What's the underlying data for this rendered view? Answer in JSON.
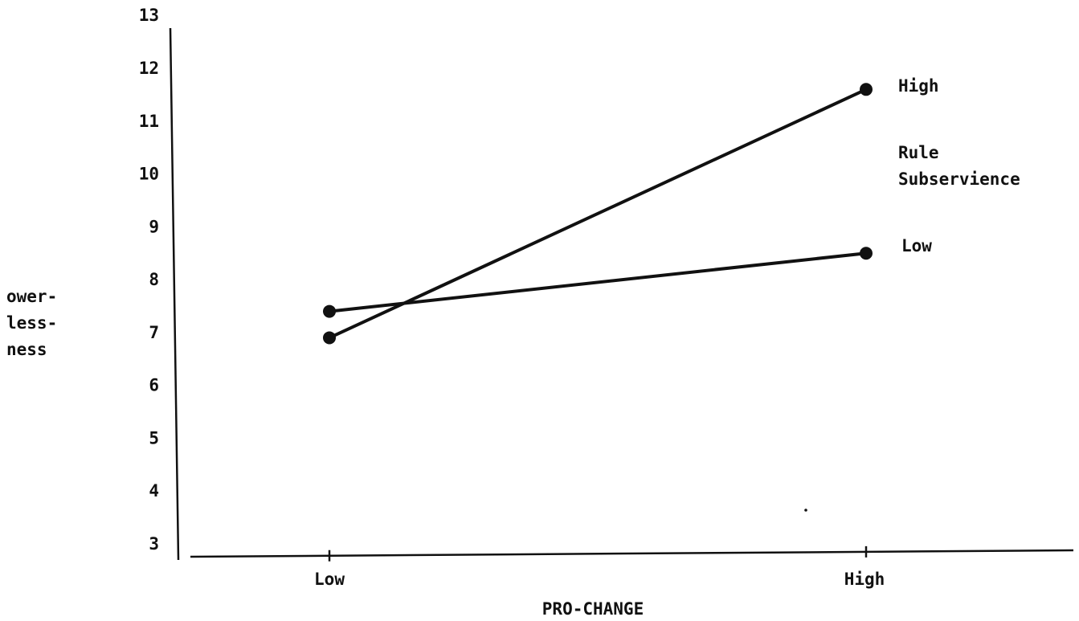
{
  "chart_data": {
    "type": "line",
    "x_categories": [
      "Low",
      "High"
    ],
    "xlabel": "PRO-CHANGE",
    "ylabel_lines": [
      "ower-",
      "less-",
      "ness"
    ],
    "ylim": [
      3,
      13
    ],
    "yticks": [
      3,
      4,
      5,
      6,
      7,
      8,
      9,
      10,
      11,
      12,
      13
    ],
    "legend_title_lines": [
      "Rule",
      "Subservience"
    ],
    "series": [
      {
        "name": "High",
        "values": [
          6.9,
          11.6
        ]
      },
      {
        "name": "Low",
        "values": [
          7.4,
          8.5
        ]
      }
    ],
    "grid": false,
    "line_color": "#111111"
  }
}
